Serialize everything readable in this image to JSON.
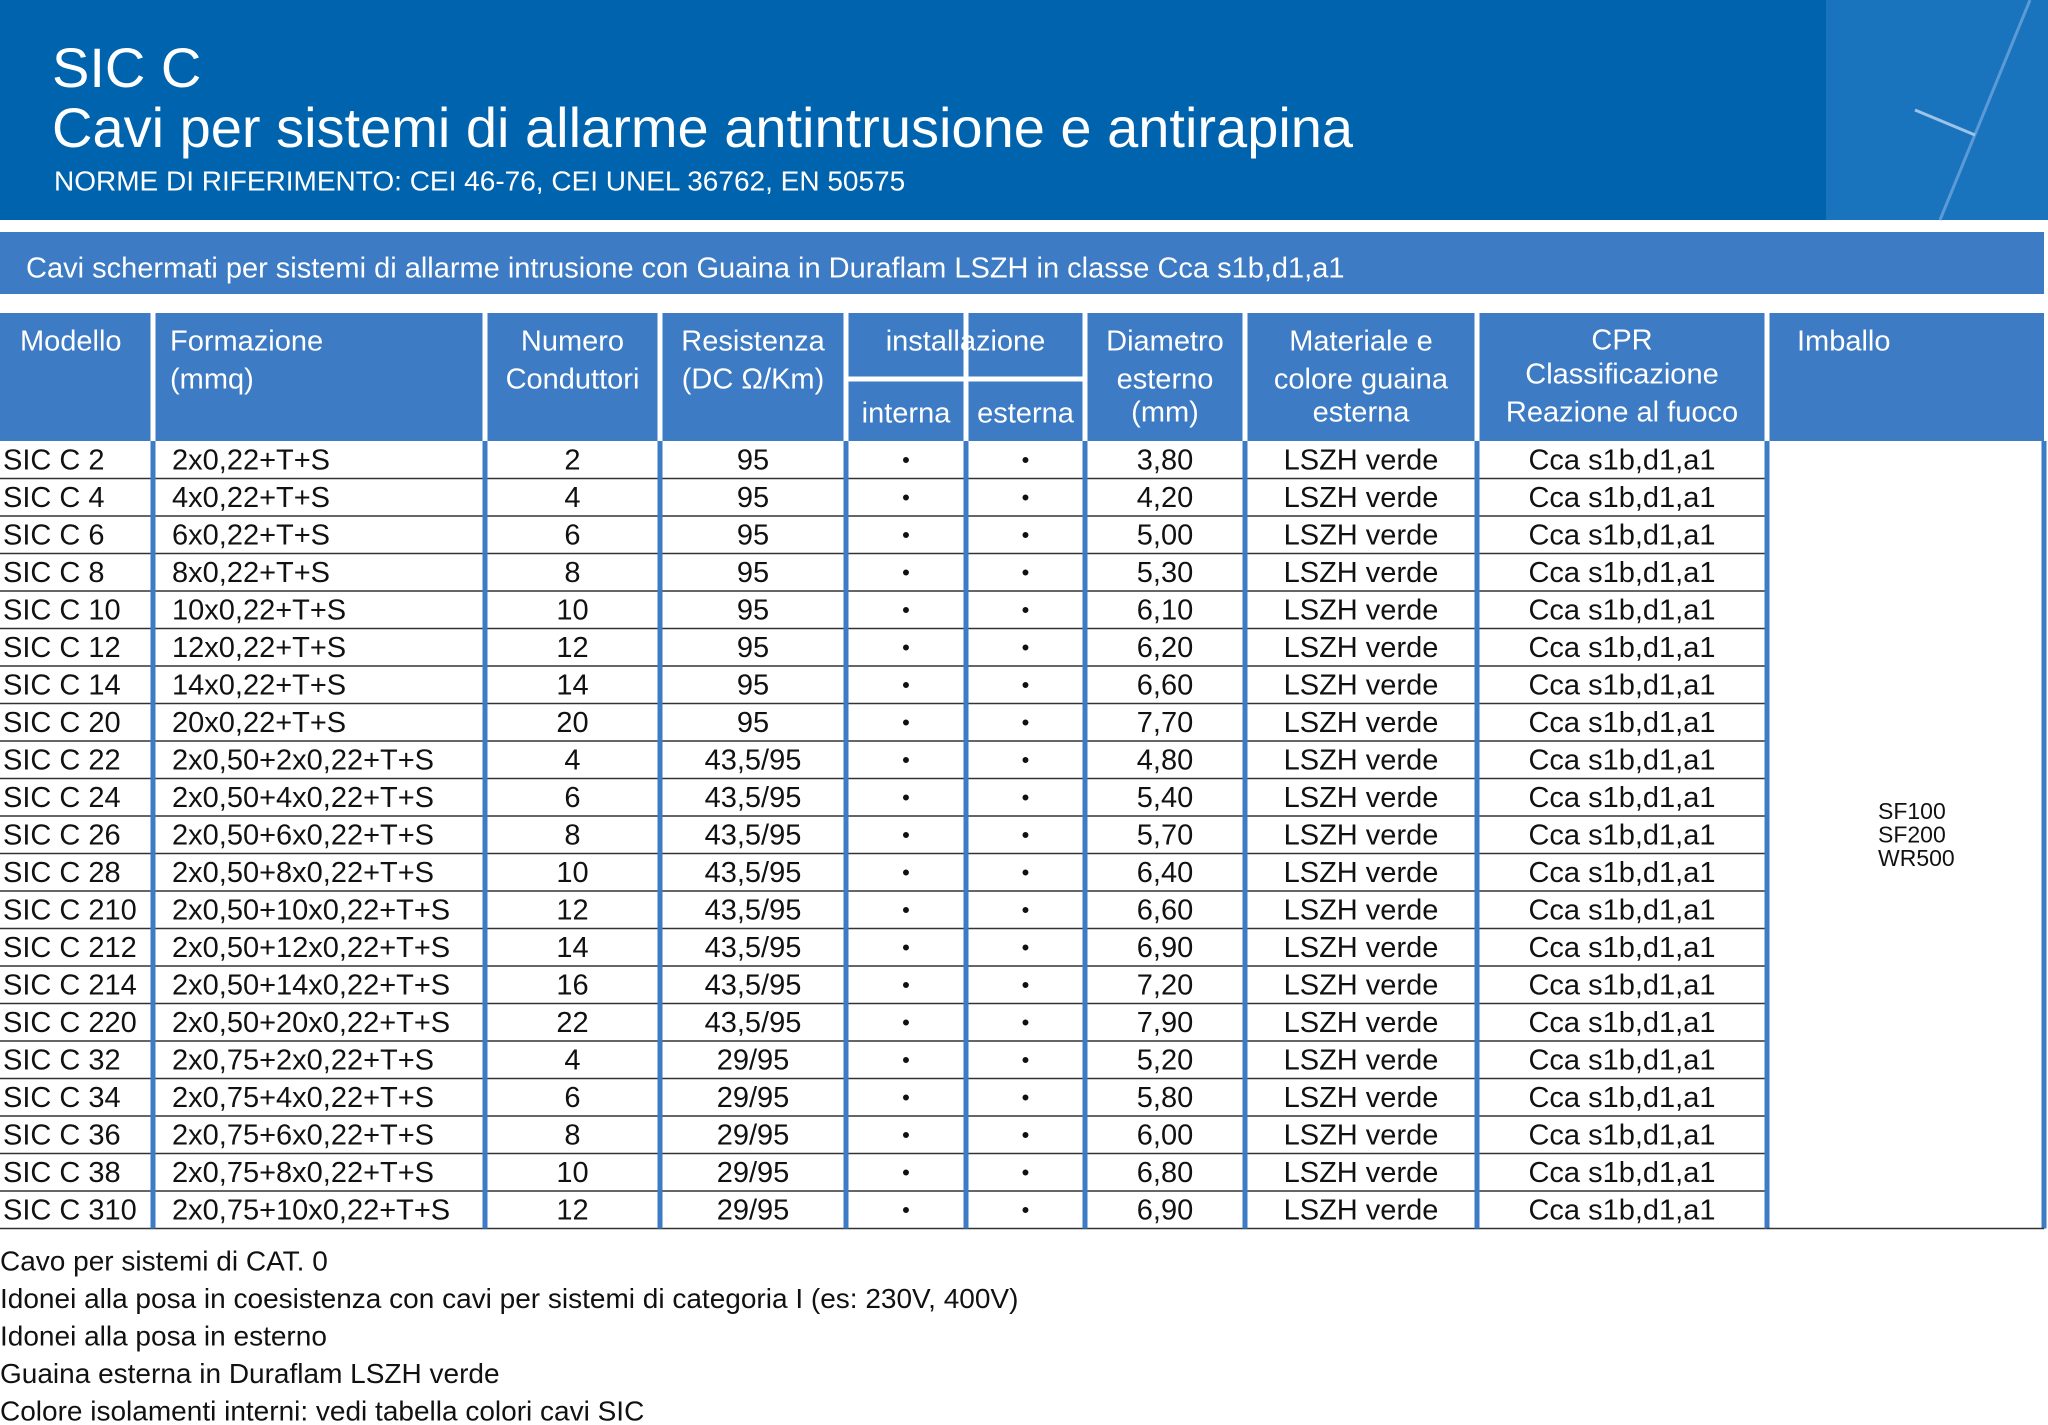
{
  "header": {
    "line1": "SIC C",
    "line2": "Cavi per sistemi di allarme antintrusione e antirapina",
    "norms": "NORME DI RIFERIMENTO: CEI 46-76, CEI UNEL 36762, EN 50575"
  },
  "subtitle": "Cavi schermati per sistemi di allarme intrusione con Guaina in Duraflam LSZH in classe Cca s1b,d1,a1",
  "table": {
    "headers": [
      [
        "Modello"
      ],
      [
        "Formazione",
        "(mmq)"
      ],
      [
        "Numero",
        "Conduttori"
      ],
      [
        "Resistenza",
        "(DC Ω/Km)"
      ],
      [
        "Diametro",
        "esterno",
        "(mm)"
      ],
      [
        "Materiale e",
        "colore guaina",
        "esterna"
      ],
      [
        "CPR",
        "Classificazione",
        "Reazione al fuoco"
      ],
      [
        "Imballo"
      ]
    ],
    "installazione": {
      "label": "installazione",
      "sub": [
        "interna",
        "esterna"
      ]
    },
    "rows": [
      [
        "SIC C 2",
        "2x0,22+T+S",
        "2",
        "95",
        "•",
        "•",
        "3,80",
        "LSZH verde",
        "Cca s1b,d1,a1"
      ],
      [
        "SIC C 4",
        "4x0,22+T+S",
        "4",
        "95",
        "•",
        "•",
        "4,20",
        "LSZH verde",
        "Cca s1b,d1,a1"
      ],
      [
        "SIC C 6",
        "6x0,22+T+S",
        "6",
        "95",
        "•",
        "•",
        "5,00",
        "LSZH verde",
        "Cca s1b,d1,a1"
      ],
      [
        "SIC C 8",
        "8x0,22+T+S",
        "8",
        "95",
        "•",
        "•",
        "5,30",
        "LSZH verde",
        "Cca s1b,d1,a1"
      ],
      [
        "SIC C 10",
        "10x0,22+T+S",
        "10",
        "95",
        "•",
        "•",
        "6,10",
        "LSZH verde",
        "Cca s1b,d1,a1"
      ],
      [
        "SIC C 12",
        "12x0,22+T+S",
        "12",
        "95",
        "•",
        "•",
        "6,20",
        "LSZH verde",
        "Cca s1b,d1,a1"
      ],
      [
        "SIC C 14",
        "14x0,22+T+S",
        "14",
        "95",
        "•",
        "•",
        "6,60",
        "LSZH verde",
        "Cca s1b,d1,a1"
      ],
      [
        "SIC C 20",
        "20x0,22+T+S",
        "20",
        "95",
        "•",
        "•",
        "7,70",
        "LSZH verde",
        "Cca s1b,d1,a1"
      ],
      [
        "SIC C 22",
        "2x0,50+2x0,22+T+S",
        "4",
        "43,5/95",
        "•",
        "•",
        "4,80",
        "LSZH verde",
        "Cca s1b,d1,a1"
      ],
      [
        "SIC C 24",
        "2x0,50+4x0,22+T+S",
        "6",
        "43,5/95",
        "•",
        "•",
        "5,40",
        "LSZH verde",
        "Cca s1b,d1,a1"
      ],
      [
        "SIC C 26",
        "2x0,50+6x0,22+T+S",
        "8",
        "43,5/95",
        "•",
        "•",
        "5,70",
        "LSZH verde",
        "Cca s1b,d1,a1"
      ],
      [
        "SIC C 28",
        "2x0,50+8x0,22+T+S",
        "10",
        "43,5/95",
        "•",
        "•",
        "6,40",
        "LSZH verde",
        "Cca s1b,d1,a1"
      ],
      [
        "SIC C 210",
        "2x0,50+10x0,22+T+S",
        "12",
        "43,5/95",
        "•",
        "•",
        "6,60",
        "LSZH verde",
        "Cca s1b,d1,a1"
      ],
      [
        "SIC C 212",
        "2x0,50+12x0,22+T+S",
        "14",
        "43,5/95",
        "•",
        "•",
        "6,90",
        "LSZH verde",
        "Cca s1b,d1,a1"
      ],
      [
        "SIC C 214",
        "2x0,50+14x0,22+T+S",
        "16",
        "43,5/95",
        "•",
        "•",
        "7,20",
        "LSZH verde",
        "Cca s1b,d1,a1"
      ],
      [
        "SIC C 220",
        "2x0,50+20x0,22+T+S",
        "22",
        "43,5/95",
        "•",
        "•",
        "7,90",
        "LSZH verde",
        "Cca s1b,d1,a1"
      ],
      [
        "SIC C 32",
        "2x0,75+2x0,22+T+S",
        "4",
        "29/95",
        "•",
        "•",
        "5,20",
        "LSZH verde",
        "Cca s1b,d1,a1"
      ],
      [
        "SIC C 34",
        "2x0,75+4x0,22+T+S",
        "6",
        "29/95",
        "•",
        "•",
        "5,80",
        "LSZH verde",
        "Cca s1b,d1,a1"
      ],
      [
        "SIC C 36",
        "2x0,75+6x0,22+T+S",
        "8",
        "29/95",
        "•",
        "•",
        "6,00",
        "LSZH verde",
        "Cca s1b,d1,a1"
      ],
      [
        "SIC C 38",
        "2x0,75+8x0,22+T+S",
        "10",
        "29/95",
        "•",
        "•",
        "6,80",
        "LSZH verde",
        "Cca s1b,d1,a1"
      ],
      [
        "SIC C 310",
        "2x0,75+10x0,22+T+S",
        "12",
        "29/95",
        "•",
        "•",
        "6,90",
        "LSZH verde",
        "Cca s1b,d1,a1"
      ]
    ],
    "imballo": [
      "SF100",
      "SF200",
      "WR500"
    ]
  },
  "notes": [
    "Cavo per sistemi di CAT. 0",
    "Idonei alla posa in coesistenza con cavi per sistemi di categoria I (es: 230V, 400V)",
    "Idonei alla posa in esterno",
    "Guaina esterna in Duraflam LSZH verde",
    "Colore isolamenti interni: vedi tabella colori cavi SIC"
  ]
}
